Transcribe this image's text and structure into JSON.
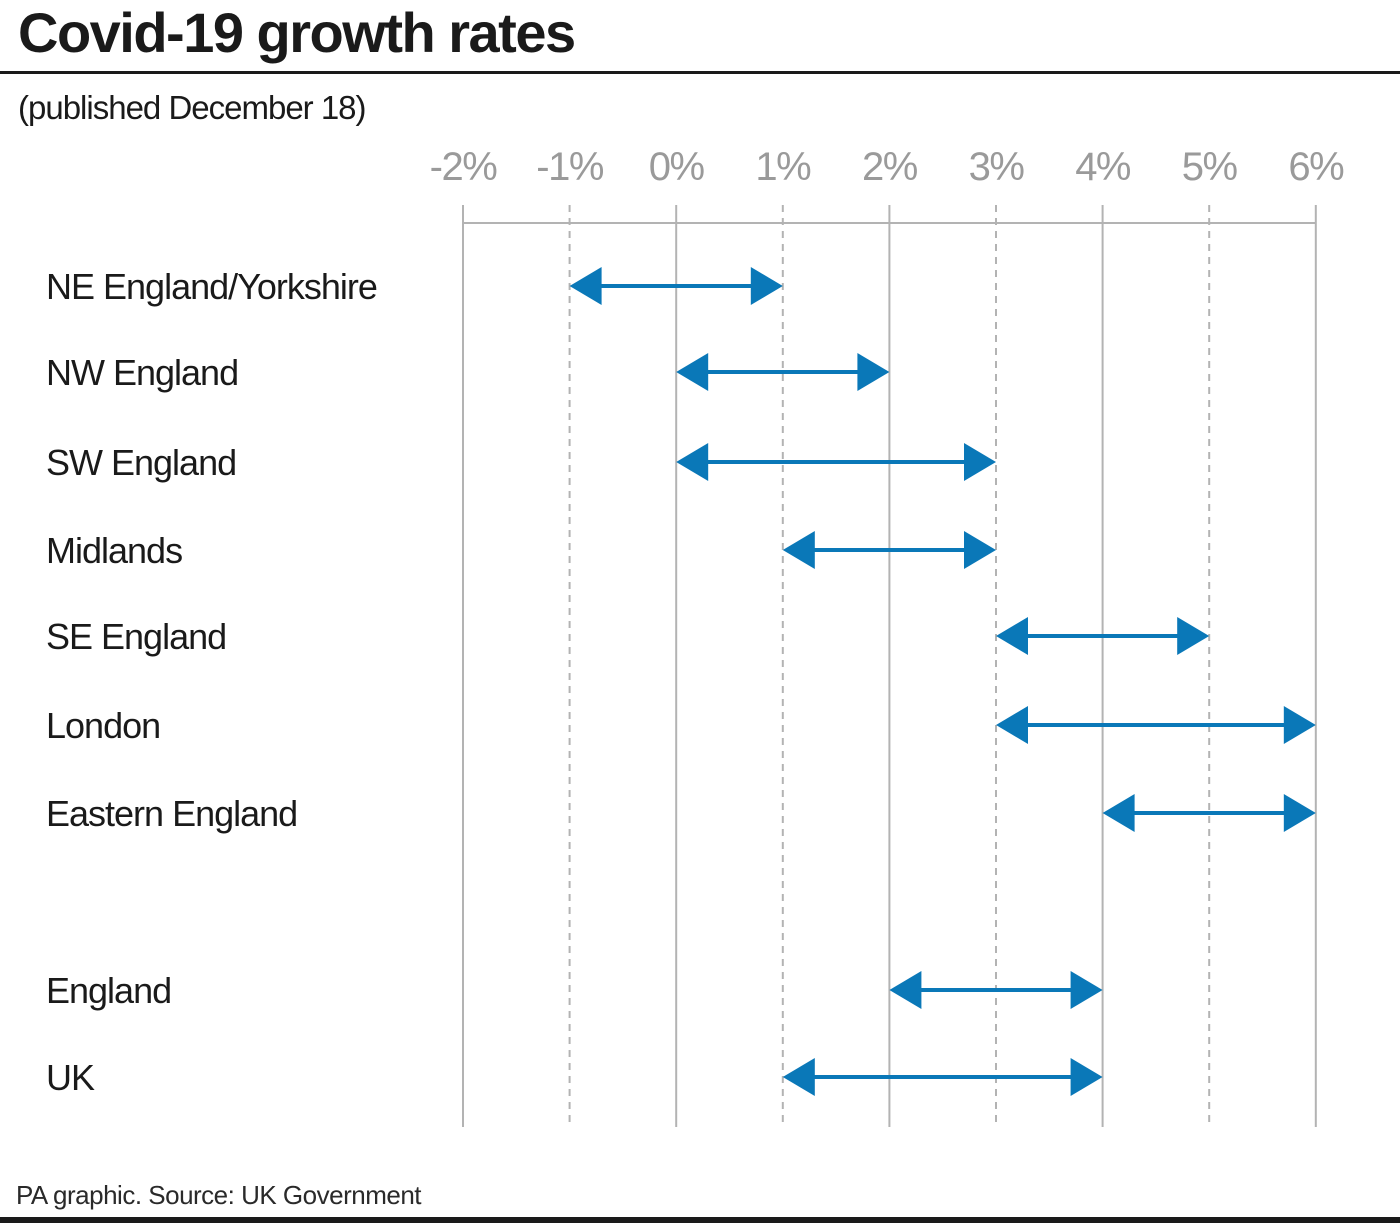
{
  "header": {
    "title": "Covid-19 growth rates",
    "subtitle": "(published December 18)"
  },
  "footer": {
    "source": "PA graphic. Source: UK Government"
  },
  "colors": {
    "arrow": "#0a78b8",
    "grid_solid": "#b3b3b3",
    "grid_dashed": "#b3b3b3",
    "tick_text": "#9a9a9a",
    "text": "#1a1a1a"
  },
  "chart_data": {
    "type": "range",
    "title": "Covid-19 growth rates",
    "subtitle": "(published December 18)",
    "xlabel": "",
    "ylabel": "",
    "x_ticks": [
      "-2%",
      "-1%",
      "0%",
      "1%",
      "2%",
      "3%",
      "4%",
      "5%",
      "6%"
    ],
    "xlim": [
      -2,
      6
    ],
    "grid": "vertical",
    "x_axis_position": "top",
    "series": [
      {
        "unit": "%",
        "categories": [
          "NE England/Yorkshire",
          "NW England",
          "SW England",
          "Midlands",
          "SE England",
          "London",
          "Eastern England",
          "England",
          "UK"
        ],
        "low": [
          -1,
          0,
          0,
          1,
          3,
          3,
          4,
          2,
          1
        ],
        "high": [
          1,
          2,
          3,
          3,
          5,
          6,
          6,
          4,
          4
        ]
      }
    ]
  }
}
